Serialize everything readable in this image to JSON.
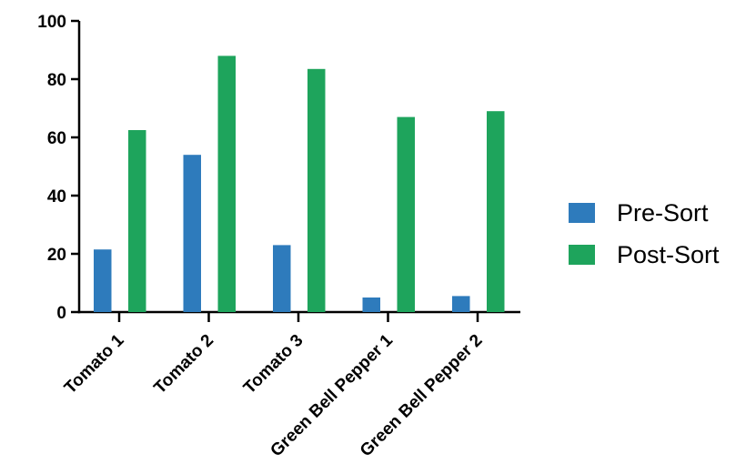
{
  "chart_data": {
    "type": "bar",
    "title": "",
    "xlabel": "",
    "ylabel": "",
    "categories": [
      "Tomato 1",
      "Tomato 2",
      "Tomato 3",
      "Green Bell Pepper 1",
      "Green Bell Pepper 2"
    ],
    "series": [
      {
        "name": "Pre-Sort",
        "color": "#2E7BBC",
        "values": [
          21.5,
          54,
          23,
          5,
          5.5
        ]
      },
      {
        "name": "Post-Sort",
        "color": "#1EA45C",
        "values": [
          62.5,
          88,
          83.5,
          67,
          69
        ]
      }
    ],
    "ylim": [
      0,
      100
    ],
    "yticks": [
      0,
      20,
      40,
      60,
      80,
      100
    ],
    "grid": false,
    "legend_position": "right",
    "axis_color": "#000000",
    "text_color": "#000000"
  }
}
